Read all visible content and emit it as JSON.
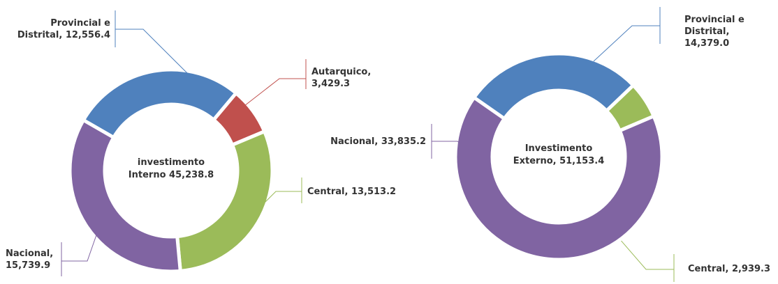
{
  "chart_data": [
    {
      "type": "donut",
      "annotation": "investimento Interno 45,238.8",
      "categories": [
        "Provincial e Distrital,",
        "Autarquico,",
        "Central,",
        "Nacional,"
      ],
      "values": [
        12556.4,
        3429.3,
        13513.2,
        15739.9
      ],
      "value_labels": [
        "12,556.4",
        "3,429.3",
        "13,513.2",
        "15,739.9"
      ],
      "colors": [
        "#4f81bd",
        "#c0504d",
        "#9bbb59",
        "#8064a2"
      ]
    },
    {
      "type": "donut",
      "annotation": "Investimento Externo, 51,153.4",
      "categories": [
        "Provincial e Distrital,",
        "Central,",
        "Nacional,"
      ],
      "values": [
        14379.0,
        2939.3,
        33835.2
      ],
      "value_labels": [
        "14,379.0",
        "2,939.3",
        "33,835.2"
      ],
      "colors": [
        "#4f81bd",
        "#9bbb59",
        "#8064a2"
      ]
    }
  ]
}
